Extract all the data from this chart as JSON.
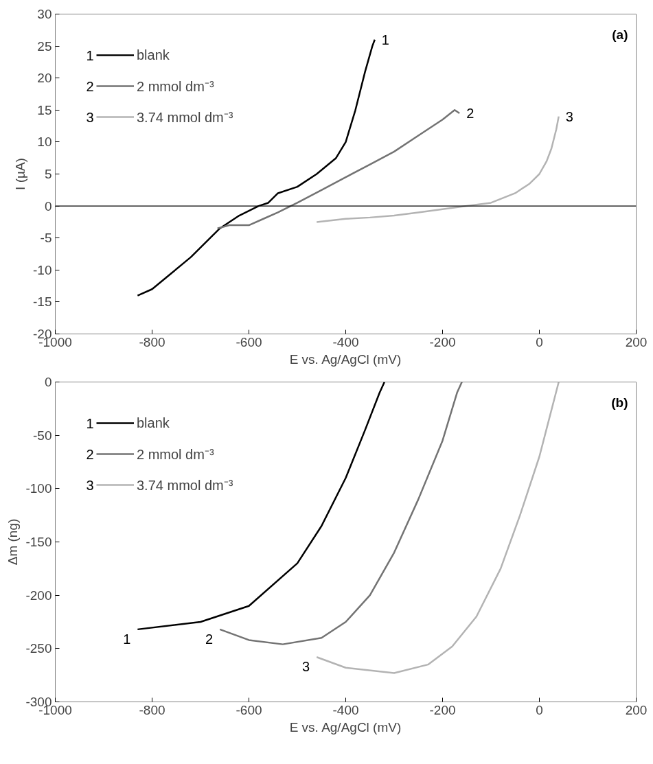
{
  "chart_data": [
    {
      "type": "line",
      "xlabel": "E vs. Ag/AgCl (mV)",
      "ylabel": "I (µA)",
      "xlim": [
        -1000,
        200
      ],
      "ylim": [
        -20,
        30
      ],
      "xticks": [
        -1000,
        -800,
        -600,
        -400,
        -200,
        0,
        200
      ],
      "yticks": [
        -20,
        -15,
        -10,
        -5,
        0,
        5,
        10,
        15,
        20,
        25,
        30
      ],
      "legend": "top left",
      "grid": false,
      "ref_lines": [
        {
          "axis": "y",
          "value": 0,
          "color": "#000000"
        }
      ],
      "annotations": [
        "(a)",
        "1",
        "2",
        "3"
      ],
      "series": [
        {
          "name": "blank",
          "color": "#000000",
          "x": [
            -830,
            -800,
            -760,
            -720,
            -680,
            -660,
            -620,
            -580,
            -560,
            -540,
            -500,
            -460,
            -420,
            -400,
            -380,
            -360,
            -345,
            -340
          ],
          "values": [
            -14,
            -13,
            -10.5,
            -8,
            -5,
            -3.5,
            -1.5,
            0,
            0.5,
            2,
            3,
            5,
            7.5,
            10,
            15,
            21,
            25,
            26
          ]
        },
        {
          "name": "2 mmol dm⁻³",
          "color": "#737373",
          "x": [
            -665,
            -640,
            -600,
            -570,
            -540,
            -500,
            -450,
            -400,
            -350,
            -300,
            -250,
            -200,
            -175,
            -165
          ],
          "values": [
            -3.5,
            -3,
            -3,
            -2,
            -1,
            0.5,
            2.5,
            4.5,
            6.5,
            8.5,
            11,
            13.5,
            15,
            14.5
          ]
        },
        {
          "name": "3.74 mmol dm⁻³",
          "color": "#b3b3b3",
          "x": [
            -460,
            -400,
            -350,
            -300,
            -250,
            -200,
            -150,
            -100,
            -50,
            -20,
            0,
            15,
            25,
            35,
            40
          ],
          "values": [
            -2.5,
            -2,
            -1.8,
            -1.5,
            -1,
            -0.5,
            0,
            0.5,
            2,
            3.5,
            5,
            7,
            9,
            12,
            14
          ]
        }
      ]
    },
    {
      "type": "line",
      "xlabel": "E vs. Ag/AgCl (mV)",
      "ylabel": "Δm (ng)",
      "xlim": [
        -1000,
        200
      ],
      "ylim": [
        -300,
        0
      ],
      "xticks": [
        -1000,
        -800,
        -600,
        -400,
        -200,
        0,
        200
      ],
      "yticks": [
        -300,
        -250,
        -200,
        -150,
        -100,
        -50,
        0
      ],
      "legend": "top left",
      "grid": false,
      "annotations": [
        "(b)",
        "1",
        "2",
        "3"
      ],
      "series": [
        {
          "name": "blank",
          "color": "#000000",
          "x": [
            -830,
            -700,
            -600,
            -500,
            -450,
            -400,
            -360,
            -330,
            -320
          ],
          "values": [
            -232,
            -225,
            -210,
            -170,
            -135,
            -90,
            -45,
            -10,
            0
          ]
        },
        {
          "name": "2 mmol dm⁻³",
          "color": "#737373",
          "x": [
            -660,
            -600,
            -530,
            -450,
            -400,
            -350,
            -300,
            -250,
            -200,
            -170,
            -160
          ],
          "values": [
            -232,
            -242,
            -246,
            -240,
            -225,
            -200,
            -160,
            -110,
            -55,
            -10,
            0
          ]
        },
        {
          "name": "3.74 mmol dm⁻³",
          "color": "#b3b3b3",
          "x": [
            -460,
            -400,
            -300,
            -230,
            -180,
            -130,
            -80,
            -40,
            0,
            20,
            40
          ],
          "values": [
            -258,
            -268,
            -273,
            -265,
            -248,
            -220,
            -175,
            -125,
            -70,
            -35,
            0
          ]
        }
      ]
    }
  ]
}
